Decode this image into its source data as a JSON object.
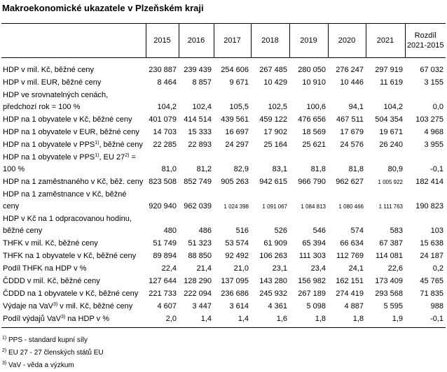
{
  "title": "Makroekonomické ukazatele v Plzeňském kraji",
  "table": {
    "header": [
      "2015",
      "2016",
      "2017",
      "2018",
      "2019",
      "2020",
      "2021",
      [
        "Rozdíl",
        "2021-2015"
      ]
    ],
    "rows": [
      {
        "label": [
          "HDP v mil. Kč, běžné ceny"
        ],
        "values": [
          "230 887",
          "239 439",
          "254 606",
          "267 485",
          "280 050",
          "276 247",
          "297 919",
          "67 032"
        ]
      },
      {
        "label": [
          "HDP v mil. EUR, běžné ceny"
        ],
        "values": [
          "8 464",
          "8 857",
          "9 671",
          "10 429",
          "10 910",
          "10 446",
          "11 619",
          "3 155"
        ]
      },
      {
        "label": [
          "HDP ve srovnatelných cenách, předchozí rok = 100 %"
        ],
        "values": [
          "104,2",
          "102,4",
          "105,5",
          "102,5",
          "100,6",
          "94,1",
          "104,2",
          "0,0"
        ]
      },
      {
        "label": [
          "HDP  na 1 obyvatele v Kč, běžné ceny"
        ],
        "values": [
          "401 079",
          "414 514",
          "439 561",
          "459 122",
          "476 656",
          "467 511",
          "504 354",
          "103 275"
        ]
      },
      {
        "label": [
          "HDP na 1 obyvatele v EUR, běžné ceny"
        ],
        "values": [
          "14 703",
          "15 333",
          "16 697",
          "17 902",
          "18 569",
          "17 679",
          "19 671",
          "4 968"
        ]
      },
      {
        "label": [
          "HDP na 1 obyvatele v PPS",
          "1)",
          ", běžné ceny"
        ],
        "values": [
          "22 285",
          "22 893",
          "24 297",
          "25 164",
          "25 621",
          "24 576",
          "26 240",
          "3 955"
        ]
      },
      {
        "label": [
          "HDP na 1 obyvatele v PPS",
          "1)",
          ", EU 27",
          "2)",
          " = 100 %"
        ],
        "values": [
          "81,0",
          "81,2",
          "82,9",
          "83,1",
          "81,8",
          "81,8",
          "80,9",
          "-0,1"
        ]
      },
      {
        "label": [
          "HDP na 1 zaměstnaného v Kč, běž. ceny"
        ],
        "values": [
          "823 508",
          "852 749",
          "905 263",
          "942 615",
          "966 790",
          "962 627",
          "1 005 922",
          "182 414"
        ]
      },
      {
        "label": [
          "HDP na 1 zaměstnance v Kč, běžné ceny"
        ],
        "values": [
          "920 940",
          "962 039",
          "1 024 398",
          "1 091 067",
          "1 084 813",
          "1 080 466",
          "1 111 763",
          "190 823"
        ]
      },
      {
        "label": [
          "HDP v Kč na 1 odpracovanou hodinu, běžné ceny"
        ],
        "values": [
          "480",
          "486",
          "516",
          "526",
          "546",
          "574",
          "583",
          "103"
        ]
      },
      {
        "label": [
          "THFK v mil. Kč, běžné ceny"
        ],
        "values": [
          "51 749",
          "51 323",
          "53 574",
          "61 909",
          "65 394",
          "66 634",
          "67 387",
          "15 638"
        ]
      },
      {
        "label": [
          "THFK na 1 obyvatele v Kč, běžné ceny"
        ],
        "values": [
          "89 894",
          "88 850",
          "92 492",
          "106 263",
          "111 303",
          "112 769",
          "114 081",
          "24 187"
        ]
      },
      {
        "label": [
          "Podíl THFK na HDP v %"
        ],
        "values": [
          "22,4",
          "21,4",
          "21,0",
          "23,1",
          "23,4",
          "24,1",
          "22,6",
          "0,2"
        ]
      },
      {
        "label": [
          "ČDDD v mil. Kč, běžné ceny"
        ],
        "values": [
          "127 644",
          "128 290",
          "137 095",
          "143 280",
          "156 982",
          "162 151",
          "173 409",
          "45 765"
        ]
      },
      {
        "label": [
          "ČDDD na 1 obyvatele v Kč, běžné ceny"
        ],
        "values": [
          "221 733",
          "222 094",
          "236 686",
          "245 932",
          "267 189",
          "274 419",
          "293 568",
          "71 835"
        ]
      },
      {
        "label": [
          "Výdaje na VaV",
          "3)",
          " v mil. Kč, běžné ceny"
        ],
        "values": [
          "4 607",
          "3 447",
          "3 614",
          "4 361",
          "5 098",
          "4 887",
          "5 595",
          "988"
        ]
      },
      {
        "label": [
          "Podíl výdajů VaV",
          "3)",
          " na HDP v %"
        ],
        "values": [
          "2,0",
          "1,4",
          "1,4",
          "1,6",
          "1,8",
          "1,8",
          "1,9",
          "-0,1"
        ]
      }
    ]
  },
  "footnotes": [
    [
      "1)",
      " PPS - standard kupní síly"
    ],
    [
      "2)",
      " EU 27 - 27 členských států EU"
    ],
    [
      "3)",
      " VaV - věda a výzkum"
    ]
  ]
}
